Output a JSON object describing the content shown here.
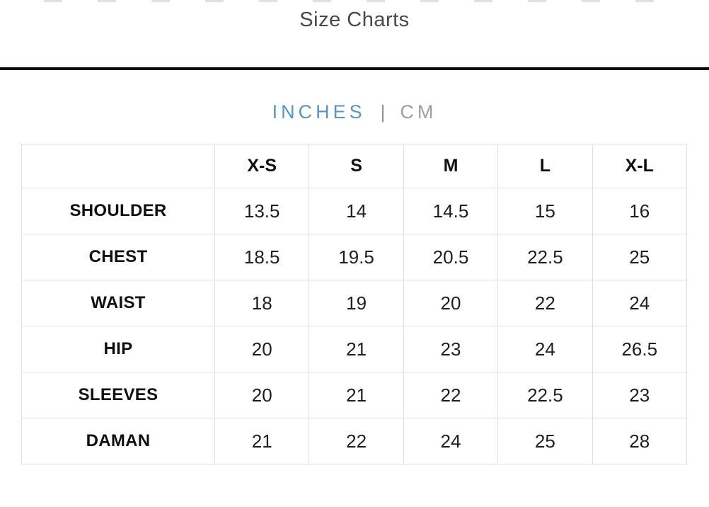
{
  "header": {
    "title": "Size Charts"
  },
  "unit_toggle": {
    "inches": "INCHES",
    "separator": "|",
    "cm": "CM",
    "active_unit": "INCHES"
  },
  "chart_data": {
    "type": "table",
    "title": "Size Charts",
    "units_options": [
      "INCHES",
      "CM"
    ],
    "units_active": "INCHES",
    "columns": [
      "",
      "X-S",
      "S",
      "M",
      "L",
      "X-L"
    ],
    "rows": [
      {
        "label": "SHOULDER",
        "values": [
          "13.5",
          "14",
          "14.5",
          "15",
          "16"
        ]
      },
      {
        "label": "CHEST",
        "values": [
          "18.5",
          "19.5",
          "20.5",
          "22.5",
          "25"
        ]
      },
      {
        "label": "WAIST",
        "values": [
          "18",
          "19",
          "20",
          "22",
          "24"
        ]
      },
      {
        "label": "HIP",
        "values": [
          "20",
          "21",
          "23",
          "24",
          "26.5"
        ]
      },
      {
        "label": "SLEEVES",
        "values": [
          "20",
          "21",
          "22",
          "22.5",
          "23"
        ]
      },
      {
        "label": "DAMAN",
        "values": [
          "21",
          "22",
          "24",
          "25",
          "28"
        ]
      }
    ]
  },
  "colors": {
    "accent_blue": "#5b93c3",
    "inactive_gray": "#9e9e9e",
    "table_border": "#e1e1e1"
  }
}
